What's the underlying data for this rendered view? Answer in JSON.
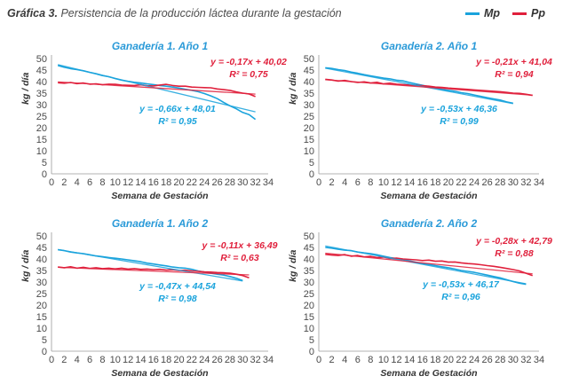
{
  "figure": {
    "title_lead": "Gráfica 3.",
    "title_text": "Persistencia de la producción láctea durante la gestación",
    "legend": [
      {
        "label": "Mp",
        "color": "#1aa3dc"
      },
      {
        "label": "Pp",
        "color": "#e0203c"
      }
    ]
  },
  "chart_data": [
    {
      "type": "line",
      "title": "Ganadería 1. Año 1",
      "xlabel": "Semana de Gestación",
      "ylabel": "kg / día",
      "xlim": [
        0,
        34
      ],
      "ylim": [
        0,
        50
      ],
      "x_ticks": [
        0,
        2,
        4,
        6,
        8,
        10,
        12,
        14,
        16,
        18,
        20,
        22,
        24,
        26,
        28,
        30,
        32,
        34
      ],
      "y_ticks": [
        0,
        5,
        10,
        15,
        20,
        25,
        30,
        35,
        40,
        45,
        50
      ],
      "series": [
        {
          "name": "Mp",
          "color": "#1aa3dc",
          "x": [
            1,
            2,
            3,
            4,
            5,
            6,
            7,
            8,
            9,
            10,
            11,
            12,
            13,
            14,
            15,
            16,
            17,
            18,
            19,
            20,
            21,
            22,
            23,
            24,
            25,
            26,
            27,
            28,
            29,
            30,
            31,
            32
          ],
          "y": [
            47,
            46.2,
            45.6,
            45.2,
            44.7,
            44,
            43.4,
            42.6,
            42.1,
            41.3,
            40.6,
            40.1,
            39.7,
            39.4,
            39,
            38.7,
            38.3,
            38,
            37.6,
            37.2,
            36.7,
            36.2,
            35.6,
            34.8,
            33.8,
            32.6,
            31,
            29.5,
            28.2,
            26.6,
            25.7,
            23.6
          ]
        },
        {
          "name": "Pp",
          "color": "#e0203c",
          "x": [
            1,
            2,
            3,
            4,
            5,
            6,
            7,
            8,
            9,
            10,
            11,
            12,
            13,
            14,
            15,
            16,
            17,
            18,
            19,
            20,
            21,
            22,
            23,
            24,
            25,
            26,
            27,
            28,
            29,
            30,
            31,
            32
          ],
          "y": [
            39.5,
            39.3,
            39.6,
            39.1,
            39.4,
            38.9,
            39,
            38.6,
            38.9,
            38.8,
            38.5,
            38.4,
            38.3,
            38.6,
            38.2,
            38.1,
            38.5,
            38.8,
            38.3,
            38,
            38,
            37.6,
            37.5,
            37.4,
            37.3,
            36.8,
            36.5,
            36.2,
            35.5,
            35,
            34.6,
            33.5
          ]
        }
      ],
      "trendlines": [
        {
          "series": "Mp",
          "slope": -0.66,
          "intercept": 48.01,
          "equation": "y = -0,66x + 48,01",
          "r2": "R² = 0,95"
        },
        {
          "series": "Pp",
          "slope": -0.17,
          "intercept": 40.02,
          "equation": "y = -0,17x + 40,02",
          "r2": "R² = 0,75"
        }
      ]
    },
    {
      "type": "line",
      "title": "Ganadería 2. Año 1",
      "xlabel": "Semana de Gestación",
      "ylabel": "kg / día",
      "xlim": [
        0,
        34
      ],
      "ylim": [
        0,
        50
      ],
      "x_ticks": [
        0,
        2,
        4,
        6,
        8,
        10,
        12,
        14,
        16,
        18,
        20,
        22,
        24,
        26,
        28,
        30,
        32,
        34
      ],
      "y_ticks": [
        0,
        5,
        10,
        15,
        20,
        25,
        30,
        35,
        40,
        45,
        50
      ],
      "series": [
        {
          "name": "Mp",
          "color": "#1aa3dc",
          "x": [
            1,
            2,
            3,
            4,
            5,
            6,
            7,
            8,
            9,
            10,
            11,
            12,
            13,
            14,
            15,
            16,
            17,
            18,
            19,
            20,
            21,
            22,
            23,
            24,
            25,
            26,
            27,
            28,
            29,
            30
          ],
          "y": [
            46,
            45.7,
            45.2,
            44.8,
            44.1,
            43.6,
            43,
            42.5,
            42,
            41.5,
            41.2,
            40.6,
            40.3,
            39.6,
            39,
            38.4,
            37.8,
            37.3,
            36.6,
            36.2,
            35.8,
            35.2,
            34.8,
            34.2,
            33.6,
            33,
            32.5,
            32,
            31.2,
            30.6
          ]
        },
        {
          "name": "Pp",
          "color": "#e0203c",
          "x": [
            1,
            2,
            3,
            4,
            5,
            6,
            7,
            8,
            9,
            10,
            11,
            12,
            13,
            14,
            15,
            16,
            17,
            18,
            19,
            20,
            21,
            22,
            23,
            24,
            25,
            26,
            27,
            28,
            29,
            30,
            31,
            32,
            33
          ],
          "y": [
            41,
            40.7,
            40.2,
            40.5,
            40,
            39.6,
            39.9,
            39.4,
            39.7,
            39,
            39.3,
            38.9,
            38.7,
            38.5,
            38.4,
            38.2,
            38,
            37.6,
            37.5,
            37.2,
            37,
            36.8,
            36.6,
            36.4,
            36.2,
            36,
            35.8,
            35.6,
            35.3,
            35,
            34.9,
            34.5,
            34
          ]
        }
      ],
      "trendlines": [
        {
          "series": "Mp",
          "slope": -0.53,
          "intercept": 46.36,
          "equation": "y = -0,53x + 46,36",
          "r2": "R² = 0,99"
        },
        {
          "series": "Pp",
          "slope": -0.21,
          "intercept": 41.04,
          "equation": "y = -0,21x + 41,04",
          "r2": "R² = 0,94"
        }
      ]
    },
    {
      "type": "line",
      "title": "Ganadería 1. Año 2",
      "xlabel": "Semana de Gestación",
      "ylabel": "kg / día",
      "xlim": [
        0,
        34
      ],
      "ylim": [
        0,
        50
      ],
      "x_ticks": [
        0,
        2,
        4,
        6,
        8,
        10,
        12,
        14,
        16,
        18,
        20,
        22,
        24,
        26,
        28,
        30,
        32,
        34
      ],
      "y_ticks": [
        0,
        5,
        10,
        15,
        20,
        25,
        30,
        35,
        40,
        45,
        50
      ],
      "series": [
        {
          "name": "Mp",
          "color": "#1aa3dc",
          "x": [
            1,
            2,
            3,
            4,
            5,
            6,
            7,
            8,
            9,
            10,
            11,
            12,
            13,
            14,
            15,
            16,
            17,
            18,
            19,
            20,
            21,
            22,
            23,
            24,
            25,
            26,
            27,
            28,
            29,
            30
          ],
          "y": [
            44,
            43.6,
            43,
            42.6,
            42.3,
            41.8,
            41.3,
            41,
            40.6,
            40.3,
            40,
            39.6,
            39.2,
            38.8,
            38.2,
            37.8,
            37.4,
            37,
            36.5,
            36.2,
            36,
            35.5,
            34.8,
            34.3,
            33.8,
            33.4,
            33,
            32.4,
            31.6,
            30.6
          ]
        },
        {
          "name": "Pp",
          "color": "#e0203c",
          "x": [
            1,
            2,
            3,
            4,
            5,
            6,
            7,
            8,
            9,
            10,
            11,
            12,
            13,
            14,
            15,
            16,
            17,
            18,
            19,
            20,
            21,
            22,
            23,
            24,
            25,
            26,
            27,
            28,
            29,
            30,
            31
          ],
          "y": [
            36.5,
            36.2,
            36.6,
            36,
            36.4,
            35.9,
            36.2,
            35.8,
            36,
            35.7,
            36,
            35.6,
            35.8,
            35.5,
            35.6,
            35.4,
            35.5,
            35.2,
            35.3,
            35,
            35.1,
            34.8,
            34.6,
            34.4,
            34.3,
            34.1,
            34,
            33.8,
            33.4,
            32.8,
            31.8
          ]
        }
      ],
      "trendlines": [
        {
          "series": "Mp",
          "slope": -0.47,
          "intercept": 44.54,
          "equation": "y = -0,47x + 44,54",
          "r2": "R² = 0,98"
        },
        {
          "series": "Pp",
          "slope": -0.11,
          "intercept": 36.49,
          "equation": "y = -0,11x + 36,49",
          "r2": "R² = 0,63"
        }
      ]
    },
    {
      "type": "line",
      "title": "Ganadería 2. Año 2",
      "xlabel": "Semana de Gestación",
      "ylabel": "kg / día",
      "xlim": [
        0,
        34
      ],
      "ylim": [
        0,
        50
      ],
      "x_ticks": [
        0,
        2,
        4,
        6,
        8,
        10,
        12,
        14,
        16,
        18,
        20,
        22,
        24,
        26,
        28,
        30,
        32,
        34
      ],
      "y_ticks": [
        0,
        5,
        10,
        15,
        20,
        25,
        30,
        35,
        40,
        45,
        50
      ],
      "series": [
        {
          "name": "Mp",
          "color": "#1aa3dc",
          "x": [
            1,
            2,
            3,
            4,
            5,
            6,
            7,
            8,
            9,
            10,
            11,
            12,
            13,
            14,
            15,
            16,
            17,
            18,
            19,
            20,
            21,
            22,
            23,
            24,
            25,
            26,
            27,
            28,
            29,
            30,
            31,
            32
          ],
          "y": [
            45,
            44.7,
            44.2,
            43.8,
            43.6,
            43,
            42.6,
            42.3,
            41.8,
            41.2,
            40.6,
            40.2,
            39.8,
            39.2,
            38.6,
            38,
            37.6,
            37.1,
            36.6,
            36.2,
            35.6,
            35,
            34.6,
            34.2,
            33.6,
            33,
            32.4,
            31.8,
            31,
            30.2,
            29.5,
            29
          ]
        },
        {
          "name": "Pp",
          "color": "#e0203c",
          "x": [
            1,
            2,
            3,
            4,
            5,
            6,
            7,
            8,
            9,
            10,
            11,
            12,
            13,
            14,
            15,
            16,
            17,
            18,
            19,
            20,
            21,
            22,
            23,
            24,
            25,
            26,
            27,
            28,
            29,
            30,
            31,
            32,
            33
          ],
          "y": [
            42,
            41.7,
            41.5,
            41.9,
            41.2,
            41.5,
            40.9,
            41.1,
            40.6,
            40.8,
            40.2,
            40.4,
            40,
            39.8,
            39.6,
            39.3,
            39.5,
            39,
            39.1,
            38.6,
            38.7,
            38.3,
            38,
            37.8,
            37.5,
            37.1,
            36.8,
            36.4,
            35.9,
            35.4,
            34.8,
            33.8,
            32.8
          ]
        }
      ],
      "trendlines": [
        {
          "series": "Mp",
          "slope": -0.53,
          "intercept": 46.17,
          "equation": "y = -0,53x + 46,17",
          "r2": "R² = 0,96"
        },
        {
          "series": "Pp",
          "slope": -0.28,
          "intercept": 42.79,
          "equation": "y = -0,28x + 42,79",
          "r2": "R² = 0,88"
        }
      ]
    }
  ]
}
